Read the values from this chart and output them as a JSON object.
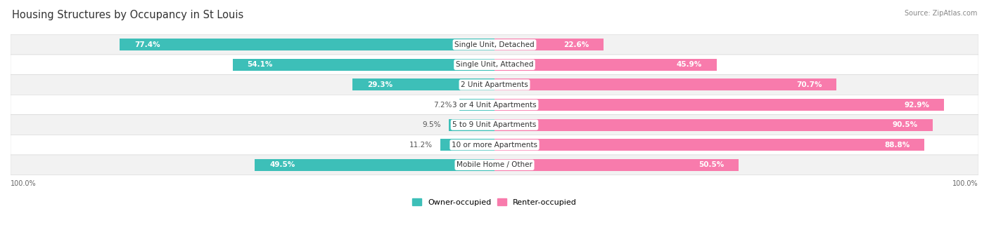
{
  "title": "Housing Structures by Occupancy in St Louis",
  "source": "Source: ZipAtlas.com",
  "categories": [
    "Single Unit, Detached",
    "Single Unit, Attached",
    "2 Unit Apartments",
    "3 or 4 Unit Apartments",
    "5 to 9 Unit Apartments",
    "10 or more Apartments",
    "Mobile Home / Other"
  ],
  "owner_pct": [
    77.4,
    54.1,
    29.3,
    7.2,
    9.5,
    11.2,
    49.5
  ],
  "renter_pct": [
    22.6,
    45.9,
    70.7,
    92.9,
    90.5,
    88.8,
    50.5
  ],
  "owner_color": "#3DBFB8",
  "renter_color": "#F87BAC",
  "bg_color": "#FFFFFF",
  "row_bg_light": "#F2F2F2",
  "row_bg_white": "#FFFFFF",
  "title_fontsize": 10.5,
  "label_fontsize": 7.5,
  "pct_fontsize": 7.5,
  "source_fontsize": 7,
  "legend_fontsize": 8,
  "bar_height": 0.6,
  "owner_label_threshold": 15,
  "renter_label_threshold": 15,
  "axis_bottom_label": "100.0%",
  "legend_owner": "Owner-occupied",
  "legend_renter": "Renter-occupied"
}
